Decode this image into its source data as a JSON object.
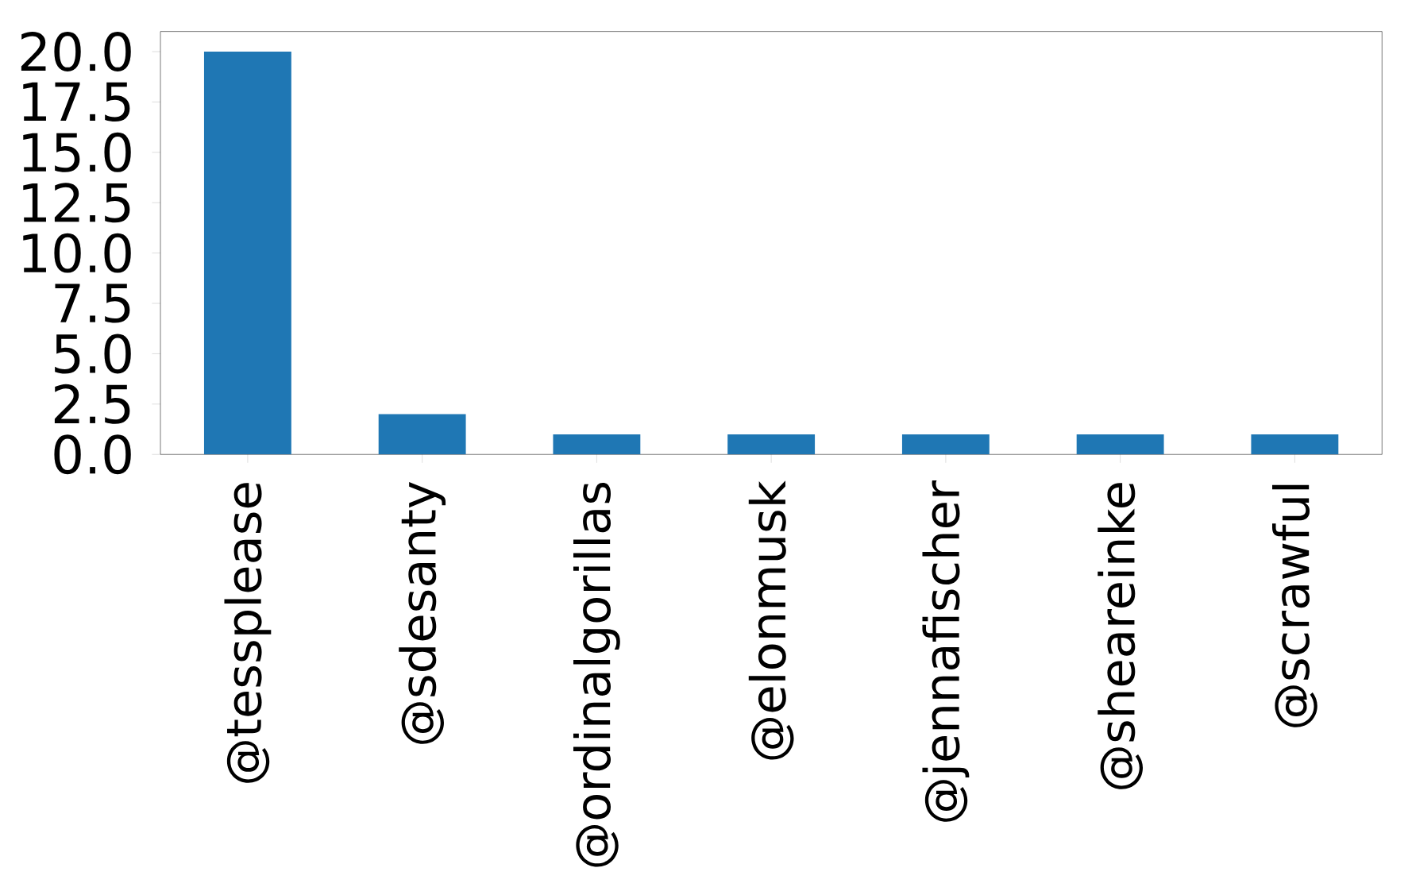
{
  "chart_data": {
    "type": "bar",
    "categories": [
      "@tessplease",
      "@sdesanty",
      "@ordinalgorillas",
      "@elonmusk",
      "@jennafischer",
      "@sheareinke",
      "@scrawful"
    ],
    "values": [
      20,
      2,
      1,
      1,
      1,
      1,
      1
    ],
    "color": "#1f77b4",
    "ylim": [
      0,
      21
    ],
    "yticks": [
      {
        "value": 0,
        "label": "0.0"
      },
      {
        "value": 2.5,
        "label": "2.5"
      },
      {
        "value": 5,
        "label": "5.0"
      },
      {
        "value": 7.5,
        "label": "7.5"
      },
      {
        "value": 10,
        "label": "10.0"
      },
      {
        "value": 12.5,
        "label": "12.5"
      },
      {
        "value": 15,
        "label": "15.0"
      },
      {
        "value": 17.5,
        "label": "17.5"
      },
      {
        "value": 20,
        "label": "20.0"
      }
    ],
    "grid": false
  }
}
